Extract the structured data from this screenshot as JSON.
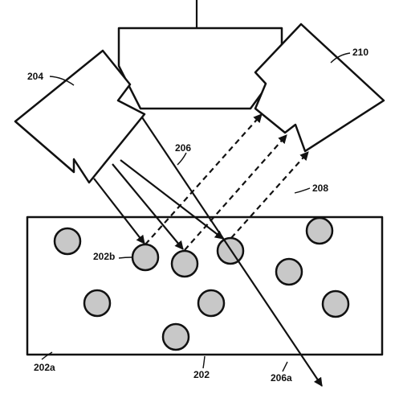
{
  "figure": {
    "labels": {
      "emitter": "204",
      "detector": "210",
      "incident_beam": "206",
      "reflected_beam": "208",
      "container": "202",
      "container_corner": "202a",
      "target_particle": "202b",
      "transmitted_beam": "206a"
    },
    "colors": {
      "line": "#111111",
      "particle_fill": "#c8c8c8",
      "background": "#ffffff"
    }
  }
}
